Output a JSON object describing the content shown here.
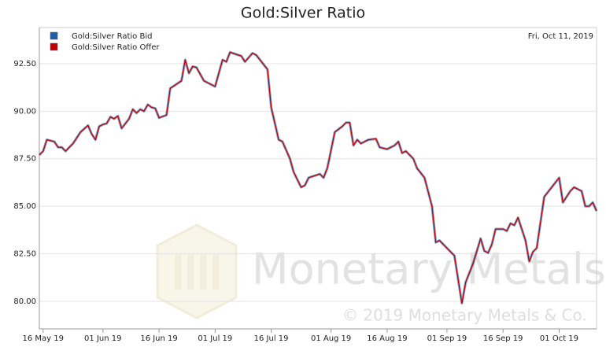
{
  "chart_data": {
    "type": "line",
    "title": "Gold:Silver Ratio",
    "annotation": "Fri, Oct 11, 2019",
    "watermark": "Monetary Metals",
    "copyright": "© 2019 Monetary Metals & Co.",
    "legend": "top-left",
    "grid": true,
    "x": [
      "2019-05-15",
      "2019-05-16",
      "2019-05-17",
      "2019-05-19",
      "2019-05-20",
      "2019-05-21",
      "2019-05-22",
      "2019-05-24",
      "2019-05-26",
      "2019-05-28",
      "2019-05-29",
      "2019-05-30",
      "2019-05-31",
      "2019-06-01",
      "2019-06-02",
      "2019-06-03",
      "2019-06-04",
      "2019-06-05",
      "2019-06-06",
      "2019-06-08",
      "2019-06-09",
      "2019-06-10",
      "2019-06-11",
      "2019-06-12",
      "2019-06-13",
      "2019-06-14",
      "2019-06-15",
      "2019-06-16",
      "2019-06-18",
      "2019-06-19",
      "2019-06-22",
      "2019-06-23",
      "2019-06-24",
      "2019-06-25",
      "2019-06-26",
      "2019-06-28",
      "2019-07-01",
      "2019-07-03",
      "2019-07-04",
      "2019-07-05",
      "2019-07-08",
      "2019-07-09",
      "2019-07-11",
      "2019-07-12",
      "2019-07-15",
      "2019-07-16",
      "2019-07-18",
      "2019-07-19",
      "2019-07-21",
      "2019-07-22",
      "2019-07-24",
      "2019-07-25",
      "2019-07-26",
      "2019-07-29",
      "2019-07-30",
      "2019-07-31",
      "2019-08-02",
      "2019-08-04",
      "2019-08-05",
      "2019-08-06",
      "2019-08-07",
      "2019-08-08",
      "2019-08-09",
      "2019-08-11",
      "2019-08-13",
      "2019-08-14",
      "2019-08-16",
      "2019-08-18",
      "2019-08-19",
      "2019-08-20",
      "2019-08-21",
      "2019-08-23",
      "2019-08-24",
      "2019-08-26",
      "2019-08-28",
      "2019-08-29",
      "2019-08-30",
      "2019-09-01",
      "2019-09-03",
      "2019-09-05",
      "2019-09-06",
      "2019-09-08",
      "2019-09-10",
      "2019-09-11",
      "2019-09-12",
      "2019-09-13",
      "2019-09-14",
      "2019-09-16",
      "2019-09-17",
      "2019-09-18",
      "2019-09-19",
      "2019-09-20",
      "2019-09-22",
      "2019-09-23",
      "2019-09-24",
      "2019-09-25",
      "2019-09-27",
      "2019-09-29",
      "2019-10-01",
      "2019-10-02",
      "2019-10-04",
      "2019-10-05",
      "2019-10-07",
      "2019-10-08",
      "2019-10-09",
      "2019-10-10",
      "2019-10-11"
    ],
    "series": [
      {
        "name": "Gold:Silver Ratio Bid",
        "color": "#1f5fa8",
        "values": [
          87.7,
          87.9,
          88.5,
          88.4,
          88.1,
          88.1,
          87.9,
          88.3,
          88.9,
          89.25,
          88.8,
          88.5,
          89.2,
          89.3,
          89.35,
          89.7,
          89.6,
          89.75,
          89.1,
          89.6,
          90.1,
          89.9,
          90.1,
          90.0,
          90.35,
          90.2,
          90.15,
          89.65,
          89.8,
          91.2,
          91.6,
          92.7,
          92.0,
          92.35,
          92.3,
          91.6,
          91.3,
          92.7,
          92.6,
          93.1,
          92.9,
          92.6,
          93.05,
          92.95,
          92.2,
          90.2,
          88.5,
          88.4,
          87.5,
          86.8,
          86.0,
          86.1,
          86.5,
          86.7,
          86.5,
          87.0,
          88.9,
          89.2,
          89.4,
          89.4,
          88.2,
          88.5,
          88.3,
          88.5,
          88.55,
          88.1,
          88.0,
          88.2,
          88.4,
          87.8,
          87.9,
          87.5,
          87.0,
          86.5,
          85.0,
          83.1,
          83.2,
          82.8,
          82.4,
          79.9,
          81.0,
          82.0,
          83.3,
          82.65,
          82.55,
          83.0,
          83.8,
          83.8,
          83.7,
          84.1,
          84.0,
          84.4,
          83.2,
          82.1,
          82.6,
          82.8,
          85.5,
          86.0,
          86.5,
          85.2,
          85.8,
          86.0,
          85.8,
          85.0,
          85.0,
          85.2,
          84.75
        ]
      },
      {
        "name": "Gold:Silver Ratio Offer",
        "color": "#c00000",
        "values": [
          87.7,
          87.9,
          88.5,
          88.4,
          88.1,
          88.1,
          87.9,
          88.3,
          88.9,
          89.25,
          88.8,
          88.5,
          89.2,
          89.3,
          89.35,
          89.7,
          89.6,
          89.75,
          89.1,
          89.6,
          90.1,
          89.9,
          90.1,
          90.0,
          90.35,
          90.2,
          90.15,
          89.65,
          89.8,
          91.2,
          91.6,
          92.7,
          92.0,
          92.35,
          92.3,
          91.6,
          91.3,
          92.7,
          92.6,
          93.1,
          92.9,
          92.6,
          93.05,
          92.95,
          92.2,
          90.2,
          88.5,
          88.4,
          87.5,
          86.8,
          86.0,
          86.1,
          86.5,
          86.7,
          86.5,
          87.0,
          88.9,
          89.2,
          89.4,
          89.4,
          88.2,
          88.5,
          88.3,
          88.5,
          88.55,
          88.1,
          88.0,
          88.2,
          88.4,
          87.8,
          87.9,
          87.5,
          87.0,
          86.5,
          85.0,
          83.1,
          83.2,
          82.8,
          82.4,
          79.9,
          81.0,
          82.0,
          83.3,
          82.65,
          82.55,
          83.0,
          83.8,
          83.8,
          83.7,
          84.1,
          84.0,
          84.4,
          83.2,
          82.1,
          82.6,
          82.8,
          85.5,
          86.0,
          86.5,
          85.2,
          85.8,
          86.0,
          85.8,
          85.0,
          85.0,
          85.2,
          84.75
        ]
      }
    ],
    "xlim": [
      "2019-05-15",
      "2019-10-11"
    ],
    "xticks": [
      {
        "value": "2019-05-16",
        "label": "16 May 19"
      },
      {
        "value": "2019-06-01",
        "label": "01 Jun 19"
      },
      {
        "value": "2019-06-16",
        "label": "16 Jun 19"
      },
      {
        "value": "2019-07-01",
        "label": "01 Jul 19"
      },
      {
        "value": "2019-07-16",
        "label": "16 Jul 19"
      },
      {
        "value": "2019-08-01",
        "label": "01 Aug 19"
      },
      {
        "value": "2019-08-16",
        "label": "16 Aug 19"
      },
      {
        "value": "2019-09-01",
        "label": "01 Sep 19"
      },
      {
        "value": "2019-09-16",
        "label": "16 Sep 19"
      },
      {
        "value": "2019-10-01",
        "label": "01 Oct 19"
      }
    ],
    "ylim": [
      78.55,
      94.4
    ],
    "yticks": [
      {
        "value": 80,
        "label": "80.00"
      },
      {
        "value": 82.5,
        "label": "82.50"
      },
      {
        "value": 85,
        "label": "85.00"
      },
      {
        "value": 87.5,
        "label": "87.50"
      },
      {
        "value": 90,
        "label": "90.00"
      },
      {
        "value": 92.5,
        "label": "92.50"
      }
    ]
  }
}
